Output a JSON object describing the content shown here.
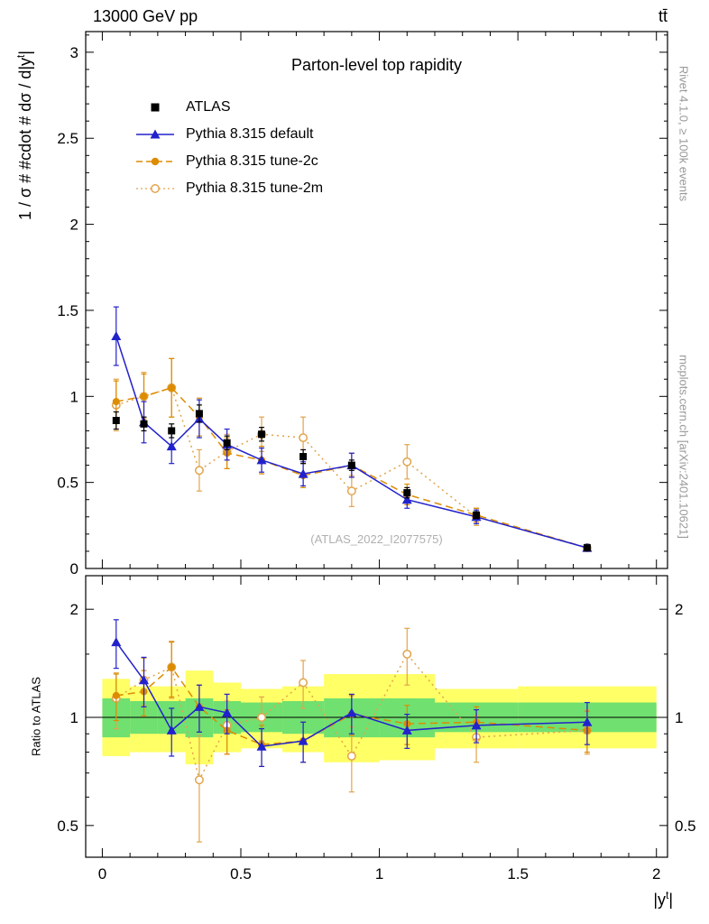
{
  "header": {
    "left": "13000 GeV pp",
    "right": "tt̄"
  },
  "side_notes": {
    "top_right": "Rivet 4.1.0, ≥ 100k events",
    "bottom_right": "mcplots.cern.ch [arXiv:2401.10621]"
  },
  "watermark": "(ATLAS_2022_I2077575)",
  "labels": {
    "y_main_prefix": "1 / σ # #cdot # dσ / d|y",
    "y_main_sup": "t",
    "y_main_suffix": "|",
    "ratio_y": "Ratio to ATLAS",
    "x_prefix": "|y",
    "x_sup": "t",
    "x_suffix": "|"
  },
  "chart_data": {
    "type": "line",
    "title": "Parton-level top rapidity",
    "xlabel": "|y^t|",
    "ylabel_main": "1 / σ # #cdot # dσ / d|y^t|",
    "ylabel_ratio": "Ratio to ATLAS",
    "xlim": [
      -0.06,
      2.04
    ],
    "ylim_main": [
      0,
      3.12
    ],
    "ylim_ratio": [
      0.408,
      2.48
    ],
    "ratio_scale": "log",
    "grid": false,
    "legend_position": "top-left-inside",
    "x_ticks": [
      0,
      0.5,
      1,
      1.5,
      2
    ],
    "x_tick_labels": [
      "0",
      "0.5",
      "1",
      "1.5",
      "2"
    ],
    "main_y_ticks": [
      0,
      0.5,
      1,
      1.5,
      2,
      2.5,
      3
    ],
    "main_y_tick_labels": [
      "0",
      "0.5",
      "1",
      "1.5",
      "2",
      "2.5",
      "3"
    ],
    "ratio_y_ticks": [
      0.5,
      1,
      2
    ],
    "ratio_y_tick_labels": [
      "0.5",
      "1",
      "2"
    ],
    "ratio_y_minor_ticks": [
      0.6,
      0.7,
      0.8,
      0.9,
      1.5
    ],
    "bin_edges": [
      0,
      0.1,
      0.2,
      0.3,
      0.4,
      0.5,
      0.65,
      0.8,
      1.0,
      1.2,
      1.5,
      2.0
    ],
    "x": [
      0.05,
      0.15,
      0.25,
      0.35,
      0.45,
      0.575,
      0.725,
      0.9,
      1.1,
      1.35,
      1.75
    ],
    "series": [
      {
        "name": "ATLAS",
        "color": "#000000",
        "marker": "square",
        "line": "none",
        "values": [
          0.86,
          0.84,
          0.8,
          0.9,
          0.73,
          0.78,
          0.65,
          0.6,
          0.44,
          0.31,
          0.12
        ],
        "errors": [
          0.05,
          0.04,
          0.04,
          0.05,
          0.04,
          0.04,
          0.04,
          0.03,
          0.03,
          0.02,
          0.01
        ]
      },
      {
        "name": "Pythia 8.315 default",
        "color": "#2222cc",
        "marker": "triangle",
        "line": "solid",
        "values": [
          1.35,
          0.85,
          0.71,
          0.87,
          0.72,
          0.63,
          0.55,
          0.6,
          0.4,
          0.3,
          0.12
        ],
        "errors": [
          0.17,
          0.12,
          0.1,
          0.11,
          0.09,
          0.07,
          0.07,
          0.07,
          0.05,
          0.04,
          0.02
        ],
        "ratio": [
          1.62,
          1.27,
          0.92,
          1.07,
          1.03,
          0.83,
          0.86,
          1.03,
          0.92,
          0.95,
          0.97
        ],
        "ratio_errors": [
          0.25,
          0.2,
          0.14,
          0.16,
          0.13,
          0.1,
          0.11,
          0.13,
          0.1,
          0.1,
          0.13
        ]
      },
      {
        "name": "Pythia 8.315 tune-2c",
        "color": "#dd8c00",
        "marker": "circle",
        "line": "dashed",
        "values": [
          0.97,
          1.0,
          1.05,
          0.88,
          0.67,
          0.63,
          0.54,
          0.6,
          0.43,
          0.31,
          0.12
        ],
        "errors": [
          0.12,
          0.13,
          0.17,
          0.11,
          0.09,
          0.08,
          0.07,
          0.07,
          0.06,
          0.04,
          0.02
        ],
        "ratio": [
          1.15,
          1.18,
          1.38,
          1.07,
          0.92,
          0.84,
          0.86,
          1.02,
          0.96,
          0.97,
          0.92
        ],
        "ratio_errors": [
          0.17,
          0.17,
          0.24,
          0.16,
          0.13,
          0.11,
          0.11,
          0.13,
          0.12,
          0.1,
          0.12
        ]
      },
      {
        "name": "Pythia 8.315 tune-2m",
        "color": "#e2a44c",
        "marker": "circle-open",
        "line": "dotted",
        "values": [
          0.95,
          1.0,
          1.05,
          0.57,
          0.68,
          0.78,
          0.76,
          0.45,
          0.62,
          0.3,
          0.12
        ],
        "errors": [
          0.15,
          0.14,
          0.17,
          0.12,
          0.1,
          0.1,
          0.12,
          0.09,
          0.1,
          0.05,
          0.02
        ],
        "ratio": [
          1.13,
          1.27,
          1.38,
          0.67,
          0.95,
          1.0,
          1.25,
          0.78,
          1.5,
          0.88,
          0.92
        ],
        "ratio_errors": [
          0.2,
          0.19,
          0.25,
          0.22,
          0.16,
          0.14,
          0.19,
          0.16,
          0.27,
          0.13,
          0.13
        ]
      }
    ],
    "bands": {
      "yellow": {
        "color": "#ffff66",
        "lo": [
          0.78,
          0.8,
          0.8,
          0.74,
          0.8,
          0.82,
          0.8,
          0.75,
          0.76,
          0.82,
          0.82
        ],
        "hi": [
          1.28,
          1.22,
          1.22,
          1.35,
          1.25,
          1.2,
          1.22,
          1.32,
          1.32,
          1.2,
          1.22
        ]
      },
      "green": {
        "color": "#70e070",
        "lo": [
          0.88,
          0.9,
          0.9,
          0.88,
          0.9,
          0.91,
          0.9,
          0.88,
          0.88,
          0.91,
          0.91
        ],
        "hi": [
          1.13,
          1.11,
          1.11,
          1.13,
          1.11,
          1.1,
          1.11,
          1.13,
          1.13,
          1.1,
          1.1
        ]
      }
    }
  }
}
